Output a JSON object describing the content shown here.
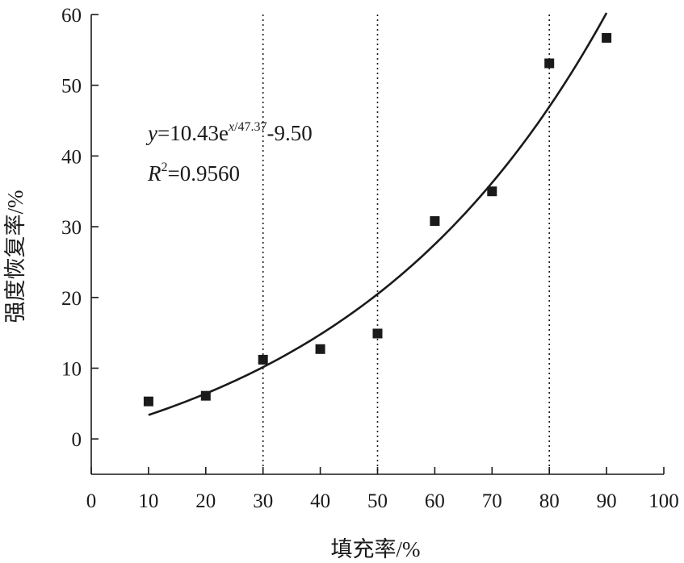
{
  "chart_data": {
    "type": "scatter",
    "xlabel": "填充率/%",
    "ylabel": "强度恢复率/%",
    "xlim": [
      0,
      100
    ],
    "ylim": [
      -5,
      60
    ],
    "xticks": [
      "0",
      "10",
      "20",
      "30",
      "40",
      "50",
      "60",
      "70",
      "80",
      "90",
      "100"
    ],
    "yticks": [
      "0",
      "10",
      "20",
      "30",
      "40",
      "50",
      "60"
    ],
    "points": [
      {
        "x": 10,
        "y": 5.3
      },
      {
        "x": 20,
        "y": 6.1
      },
      {
        "x": 30,
        "y": 11.2
      },
      {
        "x": 40,
        "y": 12.7
      },
      {
        "x": 50,
        "y": 14.9
      },
      {
        "x": 60,
        "y": 30.8
      },
      {
        "x": 70,
        "y": 35.0
      },
      {
        "x": 80,
        "y": 53.1
      },
      {
        "x": 90,
        "y": 56.7
      }
    ],
    "fit": {
      "model": "exponential",
      "a": 10.43,
      "b": 47.37,
      "c": -9.5,
      "x_range": [
        10,
        90
      ],
      "equation_var": "y",
      "equation_rest": "=10.43e",
      "equation_exp_var": "x",
      "equation_exp_rest": "/47.37",
      "equation_tail": "-9.50",
      "r2_var": "R",
      "r2_sup": "2",
      "r2_rest": "=0.9560"
    },
    "reference_lines_x": [
      30,
      50,
      80
    ],
    "marker": "filled-square",
    "color": "#1a1a1a"
  }
}
